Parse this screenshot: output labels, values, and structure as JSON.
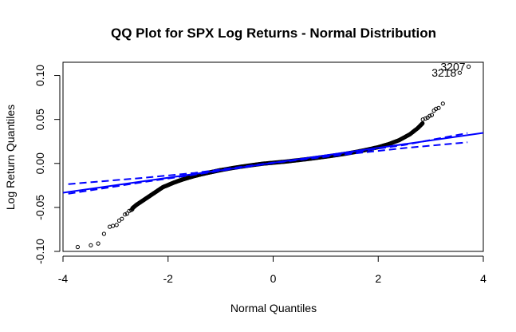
{
  "chart_data": {
    "type": "scatter",
    "title": "QQ Plot for SPX Log Returns - Normal Distribution",
    "xlabel": "Normal Quantiles",
    "ylabel": "Log Return Quantiles",
    "xlim": [
      -4,
      4
    ],
    "ylim": [
      -0.1,
      0.115
    ],
    "x_ticks": [
      -4,
      -2,
      0,
      2,
      4
    ],
    "x_tick_labels": [
      "-4",
      "-2",
      "0",
      "2",
      "4"
    ],
    "y_ticks": [
      -0.1,
      -0.05,
      0.0,
      0.05,
      0.1
    ],
    "y_tick_labels": [
      "-0.10",
      "-0.05",
      "0.00",
      "0.05",
      "0.10"
    ],
    "grid": false,
    "legend": "none",
    "point_color": "#000000",
    "line_color": "#0000ff",
    "reference_line": {
      "intercept": 0.0007,
      "slope": 0.0085
    },
    "confidence_band": {
      "upper": [
        [
          -3.9,
          -0.0235
        ],
        [
          -2.5,
          -0.0165
        ],
        [
          -1.5,
          -0.0108
        ],
        [
          0.0,
          0.0009
        ],
        [
          1.5,
          0.0125
        ],
        [
          2.5,
          0.021
        ],
        [
          3.7,
          0.0345
        ]
      ],
      "lower": [
        [
          -3.9,
          -0.0345
        ],
        [
          -2.5,
          -0.0215
        ],
        [
          -1.5,
          -0.0128
        ],
        [
          0.0,
          0.0005
        ],
        [
          1.5,
          0.011
        ],
        [
          2.5,
          0.0175
        ],
        [
          3.7,
          0.024
        ]
      ]
    },
    "tail_points": {
      "x": [
        -3.72,
        -3.47,
        -3.33,
        -3.22,
        -3.11,
        -3.05,
        -2.98,
        -2.93,
        -2.88,
        -2.82,
        -2.78,
        -2.74,
        -2.7,
        -2.68,
        2.85,
        2.9,
        2.94,
        2.98,
        3.02,
        3.06,
        3.1,
        3.15,
        3.23,
        3.55,
        3.72
      ],
      "y": [
        -0.095,
        -0.093,
        -0.091,
        -0.08,
        -0.072,
        -0.071,
        -0.07,
        -0.065,
        -0.063,
        -0.058,
        -0.057,
        -0.054,
        -0.053,
        -0.052,
        0.05,
        0.051,
        0.052,
        0.054,
        0.055,
        0.06,
        0.062,
        0.063,
        0.068,
        0.103,
        0.11
      ]
    },
    "body_curve": [
      [
        -2.68,
        -0.051
      ],
      [
        -2.6,
        -0.047
      ],
      [
        -2.5,
        -0.043
      ],
      [
        -2.4,
        -0.039
      ],
      [
        -2.3,
        -0.035
      ],
      [
        -2.2,
        -0.031
      ],
      [
        -2.1,
        -0.027
      ],
      [
        -2.0,
        -0.0245
      ],
      [
        -1.9,
        -0.022
      ],
      [
        -1.8,
        -0.0198
      ],
      [
        -1.7,
        -0.0178
      ],
      [
        -1.6,
        -0.016
      ],
      [
        -1.5,
        -0.0143
      ],
      [
        -1.4,
        -0.0128
      ],
      [
        -1.3,
        -0.0114
      ],
      [
        -1.2,
        -0.0101
      ],
      [
        -1.1,
        -0.0088
      ],
      [
        -1.0,
        -0.0076
      ],
      [
        -0.8,
        -0.0055
      ],
      [
        -0.6,
        -0.0036
      ],
      [
        -0.4,
        -0.0019
      ],
      [
        -0.2,
        -0.0003
      ],
      [
        0.0,
        0.0008
      ],
      [
        0.2,
        0.0019
      ],
      [
        0.4,
        0.0032
      ],
      [
        0.6,
        0.0046
      ],
      [
        0.8,
        0.0061
      ],
      [
        1.0,
        0.0077
      ],
      [
        1.2,
        0.0094
      ],
      [
        1.4,
        0.0113
      ],
      [
        1.6,
        0.0134
      ],
      [
        1.8,
        0.0158
      ],
      [
        2.0,
        0.0185
      ],
      [
        2.2,
        0.022
      ],
      [
        2.4,
        0.0265
      ],
      [
        2.6,
        0.033
      ],
      [
        2.75,
        0.04
      ],
      [
        2.85,
        0.046
      ]
    ],
    "labeled_points": [
      {
        "label": "3207",
        "x": 3.72,
        "y": 0.11
      },
      {
        "label": "3218",
        "x": 3.55,
        "y": 0.103
      }
    ]
  }
}
